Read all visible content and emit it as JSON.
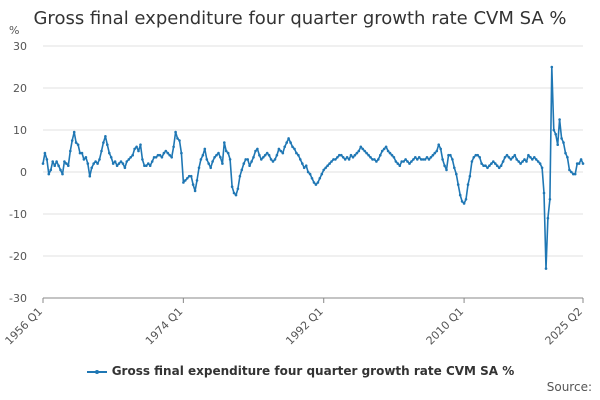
{
  "chart_data": {
    "type": "line",
    "title": "Gross final expenditure four quarter growth rate CVM SA %",
    "ylabel": "%",
    "xlabel": "",
    "ylim": [
      -30,
      30
    ],
    "yticks": [
      -30,
      -20,
      -10,
      0,
      10,
      20,
      30
    ],
    "xlim": [
      1956,
      2025.25
    ],
    "xticks": [
      "1956 Q1",
      "1974 Q1",
      "1992 Q1",
      "2010 Q1",
      "2025 Q2"
    ],
    "xtick_values": [
      1956,
      1974,
      1992,
      2010,
      2025.25
    ],
    "grid": "horizontal",
    "legend": "bottom",
    "color": "#1f77b4",
    "series": [
      {
        "name": "Gross final expenditure four quarter growth rate CVM SA %",
        "points": [
          [
            1956.0,
            2
          ],
          [
            1956.25,
            4.5
          ],
          [
            1956.5,
            3
          ],
          [
            1956.75,
            -0.5
          ],
          [
            1957.0,
            0.5
          ],
          [
            1957.25,
            2.5
          ],
          [
            1957.5,
            1.5
          ],
          [
            1957.75,
            2.5
          ],
          [
            1958.0,
            1.5
          ],
          [
            1958.25,
            0.5
          ],
          [
            1958.5,
            -0.5
          ],
          [
            1958.75,
            2.5
          ],
          [
            1959.0,
            2
          ],
          [
            1959.25,
            1.5
          ],
          [
            1959.5,
            5
          ],
          [
            1959.75,
            7.5
          ],
          [
            1960.0,
            9.5
          ],
          [
            1960.25,
            7
          ],
          [
            1960.5,
            6.5
          ],
          [
            1960.75,
            4.5
          ],
          [
            1961.0,
            4.5
          ],
          [
            1961.25,
            3
          ],
          [
            1961.5,
            3.5
          ],
          [
            1961.75,
            2
          ],
          [
            1962.0,
            -1
          ],
          [
            1962.25,
            1
          ],
          [
            1962.5,
            2
          ],
          [
            1962.75,
            2.5
          ],
          [
            1963.0,
            2
          ],
          [
            1963.25,
            3
          ],
          [
            1963.5,
            5
          ],
          [
            1963.75,
            7
          ],
          [
            1964.0,
            8.5
          ],
          [
            1964.25,
            6.5
          ],
          [
            1964.5,
            4.5
          ],
          [
            1964.75,
            3.5
          ],
          [
            1965.0,
            2
          ],
          [
            1965.25,
            2.5
          ],
          [
            1965.5,
            1.5
          ],
          [
            1965.75,
            2
          ],
          [
            1966.0,
            2.5
          ],
          [
            1966.25,
            2
          ],
          [
            1966.5,
            1
          ],
          [
            1966.75,
            2.5
          ],
          [
            1967.0,
            3
          ],
          [
            1967.25,
            3.5
          ],
          [
            1967.5,
            4
          ],
          [
            1967.75,
            5.5
          ],
          [
            1968.0,
            6
          ],
          [
            1968.25,
            5
          ],
          [
            1968.5,
            6.5
          ],
          [
            1968.75,
            3
          ],
          [
            1969.0,
            1.5
          ],
          [
            1969.25,
            1.5
          ],
          [
            1969.5,
            2
          ],
          [
            1969.75,
            1.5
          ],
          [
            1970.0,
            2.5
          ],
          [
            1970.25,
            3.5
          ],
          [
            1970.5,
            3.5
          ],
          [
            1970.75,
            4
          ],
          [
            1971.0,
            4
          ],
          [
            1971.25,
            3.5
          ],
          [
            1971.5,
            4.5
          ],
          [
            1971.75,
            5
          ],
          [
            1972.0,
            4.5
          ],
          [
            1972.25,
            4
          ],
          [
            1972.5,
            3.5
          ],
          [
            1972.75,
            6
          ],
          [
            1973.0,
            9.5
          ],
          [
            1973.25,
            8
          ],
          [
            1973.5,
            7.5
          ],
          [
            1973.75,
            4.5
          ],
          [
            1974.0,
            -2.5
          ],
          [
            1974.25,
            -2
          ],
          [
            1974.5,
            -1.5
          ],
          [
            1974.75,
            -1
          ],
          [
            1975.0,
            -1
          ],
          [
            1975.25,
            -3
          ],
          [
            1975.5,
            -4.5
          ],
          [
            1975.75,
            -2
          ],
          [
            1976.0,
            1
          ],
          [
            1976.25,
            3
          ],
          [
            1976.5,
            4
          ],
          [
            1976.75,
            5.5
          ],
          [
            1977.0,
            3
          ],
          [
            1977.25,
            2
          ],
          [
            1977.5,
            1
          ],
          [
            1977.75,
            2.5
          ],
          [
            1978.0,
            3.5
          ],
          [
            1978.25,
            4
          ],
          [
            1978.5,
            4.5
          ],
          [
            1978.75,
            3.5
          ],
          [
            1979.0,
            2
          ],
          [
            1979.25,
            7
          ],
          [
            1979.5,
            5
          ],
          [
            1979.75,
            4.5
          ],
          [
            1980.0,
            3
          ],
          [
            1980.25,
            -3.5
          ],
          [
            1980.5,
            -5
          ],
          [
            1980.75,
            -5.5
          ],
          [
            1981.0,
            -4
          ],
          [
            1981.25,
            -1
          ],
          [
            1981.5,
            0.5
          ],
          [
            1981.75,
            2
          ],
          [
            1982.0,
            3
          ],
          [
            1982.25,
            3
          ],
          [
            1982.5,
            1.5
          ],
          [
            1982.75,
            2.5
          ],
          [
            1983.0,
            3.5
          ],
          [
            1983.25,
            5
          ],
          [
            1983.5,
            5.5
          ],
          [
            1983.75,
            4
          ],
          [
            1984.0,
            3
          ],
          [
            1984.25,
            3.5
          ],
          [
            1984.5,
            4
          ],
          [
            1984.75,
            4.5
          ],
          [
            1985.0,
            4
          ],
          [
            1985.25,
            3
          ],
          [
            1985.5,
            2.5
          ],
          [
            1985.75,
            3
          ],
          [
            1986.0,
            4
          ],
          [
            1986.25,
            5.5
          ],
          [
            1986.5,
            5
          ],
          [
            1986.75,
            4.5
          ],
          [
            1987.0,
            6
          ],
          [
            1987.25,
            7
          ],
          [
            1987.5,
            8
          ],
          [
            1987.75,
            7
          ],
          [
            1988.0,
            6
          ],
          [
            1988.25,
            5.5
          ],
          [
            1988.5,
            4.5
          ],
          [
            1988.75,
            4
          ],
          [
            1989.0,
            3
          ],
          [
            1989.25,
            2
          ],
          [
            1989.5,
            1
          ],
          [
            1989.75,
            1.5
          ],
          [
            1990.0,
            0
          ],
          [
            1990.25,
            -0.5
          ],
          [
            1990.5,
            -1.5
          ],
          [
            1990.75,
            -2.5
          ],
          [
            1991.0,
            -3
          ],
          [
            1991.25,
            -2.5
          ],
          [
            1991.5,
            -1.5
          ],
          [
            1991.75,
            -0.5
          ],
          [
            1992.0,
            0.5
          ],
          [
            1992.25,
            1
          ],
          [
            1992.5,
            1.5
          ],
          [
            1992.75,
            2
          ],
          [
            1993.0,
            2.5
          ],
          [
            1993.25,
            3
          ],
          [
            1993.5,
            3
          ],
          [
            1993.75,
            3.5
          ],
          [
            1994.0,
            4
          ],
          [
            1994.25,
            4
          ],
          [
            1994.5,
            3.5
          ],
          [
            1994.75,
            3
          ],
          [
            1995.0,
            3.5
          ],
          [
            1995.25,
            3
          ],
          [
            1995.5,
            4
          ],
          [
            1995.75,
            3.5
          ],
          [
            1996.0,
            4
          ],
          [
            1996.25,
            4.5
          ],
          [
            1996.5,
            5
          ],
          [
            1996.75,
            6
          ],
          [
            1997.0,
            5.5
          ],
          [
            1997.25,
            5
          ],
          [
            1997.5,
            4.5
          ],
          [
            1997.75,
            4
          ],
          [
            1998.0,
            3.5
          ],
          [
            1998.25,
            3
          ],
          [
            1998.5,
            3
          ],
          [
            1998.75,
            2.5
          ],
          [
            1999.0,
            3
          ],
          [
            1999.25,
            4
          ],
          [
            1999.5,
            5
          ],
          [
            1999.75,
            5.5
          ],
          [
            2000.0,
            6
          ],
          [
            2000.25,
            5
          ],
          [
            2000.5,
            4.5
          ],
          [
            2000.75,
            4
          ],
          [
            2001.0,
            3.5
          ],
          [
            2001.25,
            2.5
          ],
          [
            2001.5,
            2
          ],
          [
            2001.75,
            1.5
          ],
          [
            2002.0,
            2.5
          ],
          [
            2002.25,
            2.5
          ],
          [
            2002.5,
            3
          ],
          [
            2002.75,
            2.5
          ],
          [
            2003.0,
            2
          ],
          [
            2003.25,
            2.5
          ],
          [
            2003.5,
            3
          ],
          [
            2003.75,
            3.5
          ],
          [
            2004.0,
            3
          ],
          [
            2004.25,
            3.5
          ],
          [
            2004.5,
            3
          ],
          [
            2004.75,
            3
          ],
          [
            2005.0,
            3
          ],
          [
            2005.25,
            3.5
          ],
          [
            2005.5,
            3
          ],
          [
            2005.75,
            3.5
          ],
          [
            2006.0,
            4
          ],
          [
            2006.25,
            4.5
          ],
          [
            2006.5,
            5
          ],
          [
            2006.75,
            6.5
          ],
          [
            2007.0,
            5.5
          ],
          [
            2007.25,
            3
          ],
          [
            2007.5,
            1.5
          ],
          [
            2007.75,
            0.5
          ],
          [
            2008.0,
            4
          ],
          [
            2008.25,
            4
          ],
          [
            2008.5,
            3
          ],
          [
            2008.75,
            1
          ],
          [
            2009.0,
            -0.5
          ],
          [
            2009.25,
            -3
          ],
          [
            2009.5,
            -5.5
          ],
          [
            2009.75,
            -7
          ],
          [
            2010.0,
            -7.5
          ],
          [
            2010.25,
            -6.5
          ],
          [
            2010.5,
            -3
          ],
          [
            2010.75,
            -1
          ],
          [
            2011.0,
            2.5
          ],
          [
            2011.25,
            3.5
          ],
          [
            2011.5,
            4
          ],
          [
            2011.75,
            4
          ],
          [
            2012.0,
            3.5
          ],
          [
            2012.25,
            2
          ],
          [
            2012.5,
            1.5
          ],
          [
            2012.75,
            1.5
          ],
          [
            2013.0,
            1
          ],
          [
            2013.25,
            1.5
          ],
          [
            2013.5,
            2
          ],
          [
            2013.75,
            2.5
          ],
          [
            2014.0,
            2
          ],
          [
            2014.25,
            1.5
          ],
          [
            2014.5,
            1
          ],
          [
            2014.75,
            1.5
          ],
          [
            2015.0,
            2.5
          ],
          [
            2015.25,
            3.5
          ],
          [
            2015.5,
            4
          ],
          [
            2015.75,
            3.5
          ],
          [
            2016.0,
            3
          ],
          [
            2016.25,
            3.5
          ],
          [
            2016.5,
            4
          ],
          [
            2016.75,
            3
          ],
          [
            2017.0,
            2.5
          ],
          [
            2017.25,
            2
          ],
          [
            2017.5,
            2.5
          ],
          [
            2017.75,
            3
          ],
          [
            2018.0,
            2.5
          ],
          [
            2018.25,
            4
          ],
          [
            2018.5,
            3.5
          ],
          [
            2018.75,
            3
          ],
          [
            2019.0,
            3.5
          ],
          [
            2019.25,
            3
          ],
          [
            2019.5,
            2.5
          ],
          [
            2019.75,
            2
          ],
          [
            2020.0,
            1
          ],
          [
            2020.25,
            -5
          ],
          [
            2020.5,
            -23
          ],
          [
            2020.75,
            -11
          ],
          [
            2021.0,
            -6.5
          ],
          [
            2021.25,
            25
          ],
          [
            2021.5,
            10
          ],
          [
            2021.75,
            9
          ],
          [
            2022.0,
            6.5
          ],
          [
            2022.25,
            12.5
          ],
          [
            2022.5,
            8
          ],
          [
            2022.75,
            7
          ],
          [
            2023.0,
            4.5
          ],
          [
            2023.25,
            3.5
          ],
          [
            2023.5,
            0.5
          ],
          [
            2023.75,
            0
          ],
          [
            2024.0,
            -0.5
          ],
          [
            2024.25,
            -0.5
          ],
          [
            2024.5,
            2
          ],
          [
            2024.75,
            2
          ],
          [
            2025.0,
            3
          ],
          [
            2025.25,
            2
          ]
        ]
      }
    ]
  },
  "footer": {
    "source": "Source:"
  }
}
